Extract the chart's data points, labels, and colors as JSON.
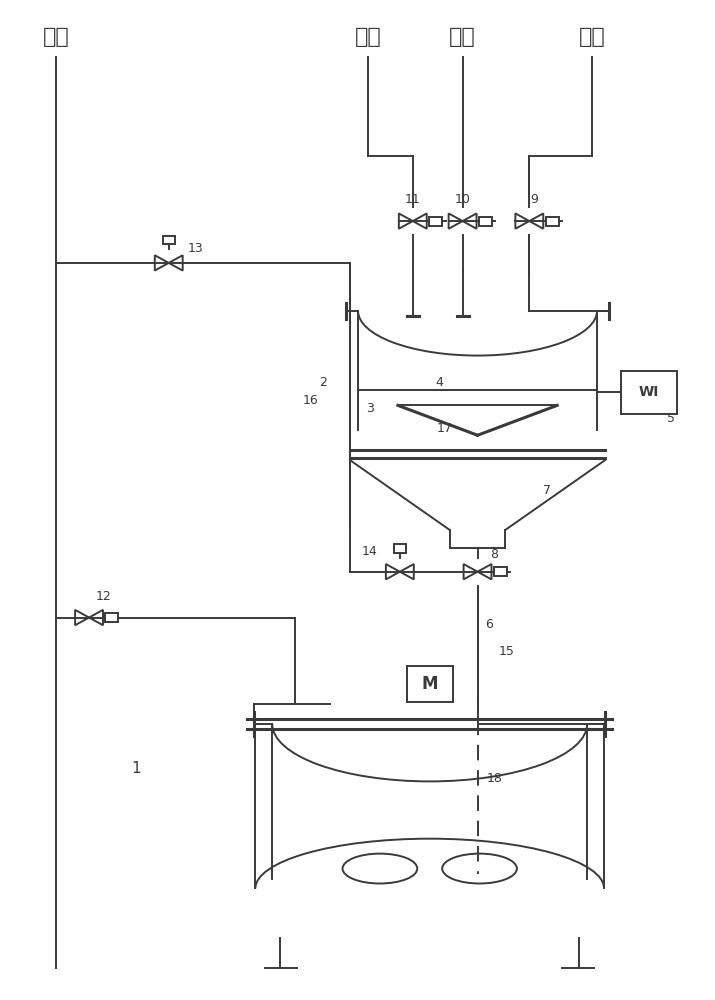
{
  "bg_color": "#ffffff",
  "line_color": "#3a3a3a",
  "labels": {
    "nitrogen": "氮气",
    "solvent": "溶剂",
    "tail_gas": "尾气",
    "filtrate": "滤液"
  }
}
